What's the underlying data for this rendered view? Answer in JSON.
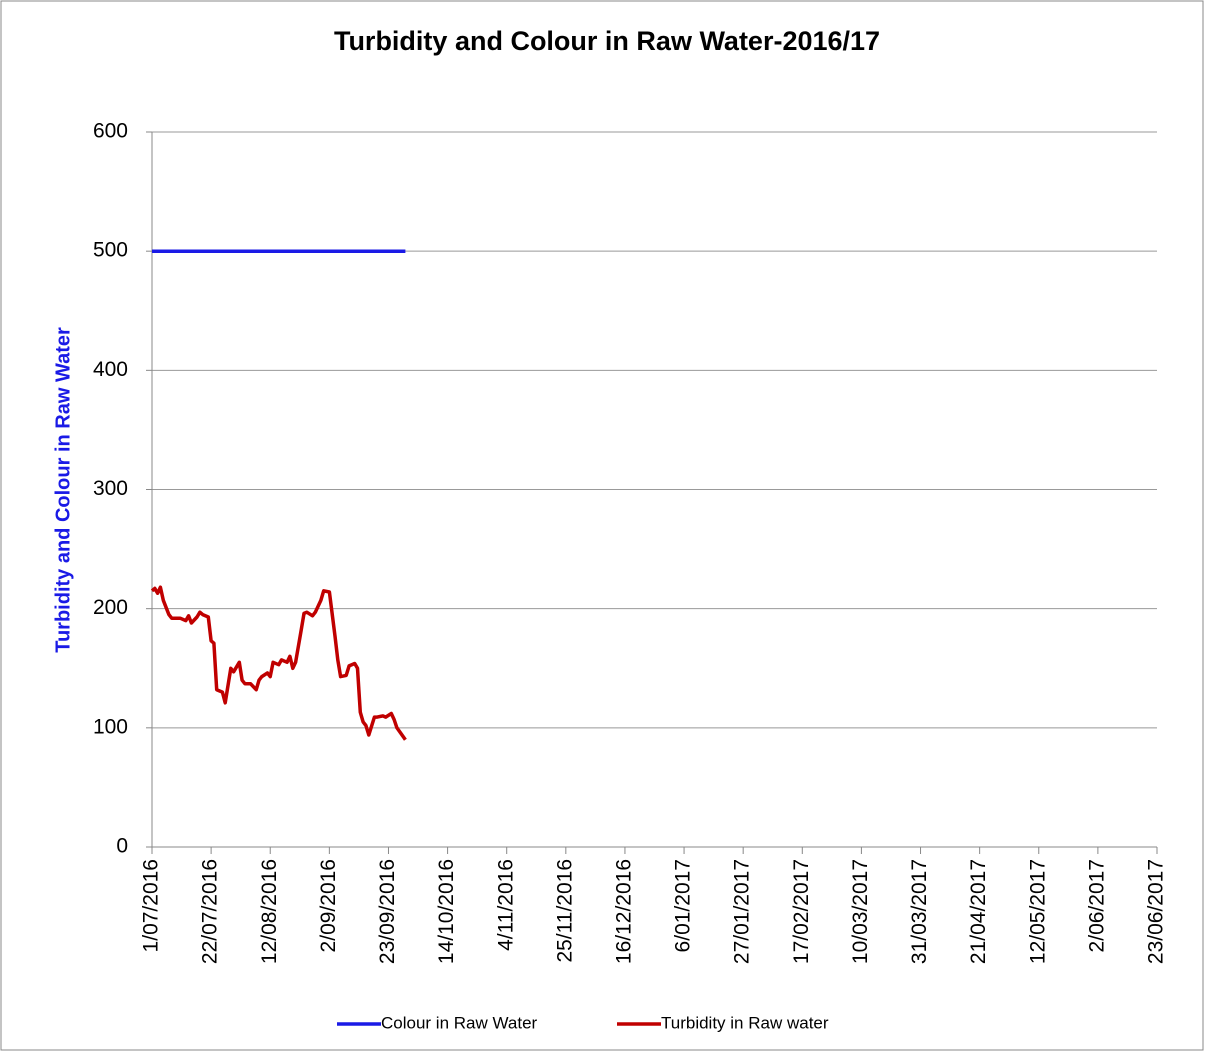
{
  "chart_data": {
    "type": "line",
    "title": "Turbidity  and Colour in Raw Water-2016/17",
    "y_label": "Turbidity and Colour in Raw Water",
    "x": [
      "1/07/2016",
      "2/07/2016",
      "3/07/2016",
      "4/07/2016",
      "5/07/2016",
      "7/07/2016",
      "8/07/2016",
      "11/07/2016",
      "13/07/2016",
      "14/07/2016",
      "15/07/2016",
      "17/07/2016",
      "18/07/2016",
      "19/07/2016",
      "21/07/2016",
      "22/07/2016",
      "23/07/2016",
      "24/07/2016",
      "26/07/2016",
      "27/07/2016",
      "29/07/2016",
      "30/07/2016",
      "1/08/2016",
      "2/08/2016",
      "3/08/2016",
      "5/08/2016",
      "7/08/2016",
      "8/08/2016",
      "9/08/2016",
      "11/08/2016",
      "12/08/2016",
      "13/08/2016",
      "15/08/2016",
      "16/08/2016",
      "18/08/2016",
      "19/08/2016",
      "20/08/2016",
      "21/08/2016",
      "23/08/2016",
      "24/08/2016",
      "25/08/2016",
      "27/08/2016",
      "28/08/2016",
      "30/08/2016",
      "31/08/2016",
      "2/09/2016",
      "4/09/2016",
      "5/09/2016",
      "6/09/2016",
      "8/09/2016",
      "9/09/2016",
      "11/09/2016",
      "12/09/2016",
      "13/09/2016",
      "14/09/2016",
      "15/09/2016",
      "16/09/2016",
      "18/09/2016",
      "19/09/2016",
      "21/09/2016",
      "22/09/2016",
      "24/09/2016",
      "25/09/2016",
      "26/09/2016",
      "29/09/2016"
    ],
    "series": [
      {
        "name": "Colour in Raw Water",
        "color": "#1a1ae6",
        "values": [
          500,
          500,
          500,
          500,
          500,
          500,
          500,
          500,
          500,
          500,
          500,
          500,
          500,
          500,
          500,
          500,
          500,
          500,
          500,
          500,
          500,
          500,
          500,
          500,
          500,
          500,
          500,
          500,
          500,
          500,
          500,
          500,
          500,
          500,
          500,
          500,
          500,
          500,
          500,
          500,
          500,
          500,
          500,
          500,
          500,
          500,
          500,
          500,
          500,
          500,
          500,
          500,
          500,
          500,
          500,
          500,
          500,
          500,
          500,
          500,
          500,
          500,
          500,
          500,
          500
        ]
      },
      {
        "name": "Turbidity in  Raw water",
        "color": "#c00000",
        "values": [
          215,
          217,
          213,
          218,
          207,
          195,
          192,
          192,
          190,
          194,
          188,
          193,
          197,
          195,
          193,
          173,
          171,
          132,
          130,
          121,
          150,
          147,
          155,
          140,
          137,
          137,
          132,
          140,
          143,
          146,
          143,
          155,
          153,
          157,
          155,
          160,
          150,
          155,
          182,
          196,
          197,
          194,
          197,
          207,
          215,
          214,
          177,
          157,
          143,
          144,
          152,
          154,
          150,
          113,
          105,
          102,
          94,
          109,
          109,
          110,
          109,
          112,
          107,
          100,
          90
        ]
      }
    ],
    "xlim": [
      "1/07/2016",
      "23/06/2017"
    ],
    "xticks": [
      "1/07/2016",
      "22/07/2016",
      "12/08/2016",
      "2/09/2016",
      "23/09/2016",
      "14/10/2016",
      "4/11/2016",
      "25/11/2016",
      "16/12/2016",
      "6/01/2017",
      "27/01/2017",
      "17/02/2017",
      "10/03/2017",
      "31/03/2017",
      "21/04/2017",
      "12/05/2017",
      "2/06/2017",
      "23/06/2017"
    ],
    "ylim": [
      0,
      600
    ],
    "yticks": [
      0,
      100,
      200,
      300,
      400,
      500,
      600
    ],
    "grid": true,
    "legend": "bottom"
  }
}
